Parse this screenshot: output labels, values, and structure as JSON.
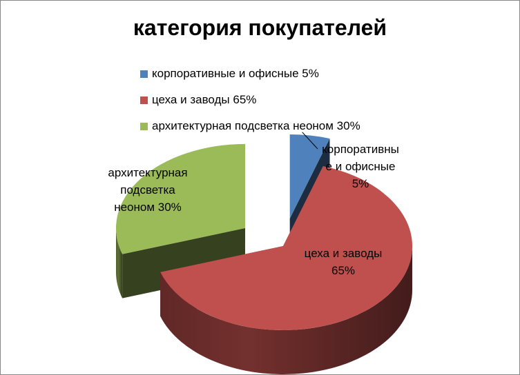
{
  "chart_data": {
    "type": "pie",
    "title": "категория покупателей",
    "three_d": true,
    "exploded": true,
    "legend_position": "top",
    "slices": [
      {
        "legend": "корпоративные и офисные 5%",
        "label_lines": [
          "корпоративны",
          "е и офисные",
          "5%"
        ],
        "value": 5,
        "color": "#4F81BD"
      },
      {
        "legend": "цеха и заводы 65%",
        "label_lines": [
          "цеха и заводы",
          "65%"
        ],
        "value": 65,
        "color": "#C0504D"
      },
      {
        "legend": "архитектурная подсветка неоном 30%",
        "label_lines": [
          "архитектурная",
          "подсветка",
          "неоном 30%"
        ],
        "value": 30,
        "color": "#9BBB59"
      }
    ]
  }
}
